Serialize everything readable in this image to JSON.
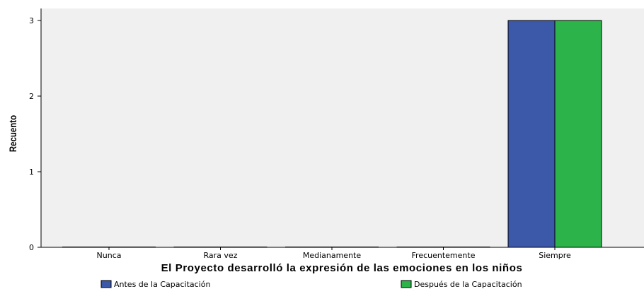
{
  "chart_data": {
    "type": "bar",
    "categories": [
      "Nunca",
      "Rara vez",
      "Medianamente",
      "Frecuentemente",
      "Siempre"
    ],
    "series": [
      {
        "name": "Antes de la Capacitación",
        "values": [
          0,
          0,
          0,
          0,
          3
        ],
        "color": "#3c58a8"
      },
      {
        "name": "Después de la Capacitación",
        "values": [
          0,
          0,
          0,
          0,
          3
        ],
        "color": "#2cb34a"
      }
    ],
    "xlabel": "El Proyecto desarrolló la expresión de las emociones en los niños",
    "ylabel": "Recuento",
    "ylim": [
      0,
      3
    ],
    "yticks": [
      0,
      1,
      2,
      3
    ],
    "grid": false,
    "legend_position": "bottom",
    "plot_background": "#f0f0f0"
  }
}
